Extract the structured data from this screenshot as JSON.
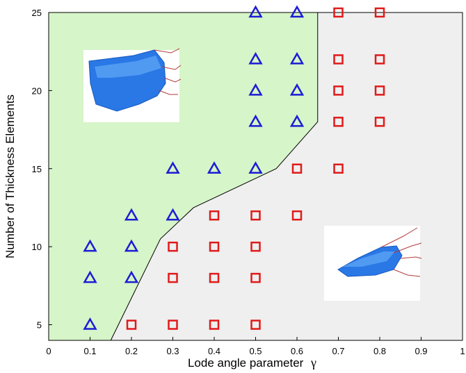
{
  "chart_data": {
    "type": "scatter",
    "title": "",
    "xlabel": "Lode angle parameter",
    "xlabel_symbol": "γ",
    "ylabel": "Number of Thickness Elements",
    "xlim": [
      0,
      1
    ],
    "ylim": [
      4,
      25
    ],
    "x_ticks": [
      "0",
      "0.1",
      "0.2",
      "0.3",
      "0.4",
      "0.5",
      "0.6",
      "0.7",
      "0.8",
      "0.9",
      "1"
    ],
    "y_ticks": [
      "5",
      "10",
      "15",
      "20",
      "25"
    ],
    "grid": false,
    "legend": "none",
    "regions": [
      {
        "color": "#d6f5c8",
        "boundary": [
          [
            0.15,
            4
          ],
          [
            0.27,
            10.5
          ],
          [
            0.35,
            12.5
          ],
          [
            0.55,
            15
          ],
          [
            0.65,
            18
          ],
          [
            0.65,
            25
          ]
        ]
      },
      {
        "color": "#efefef"
      }
    ],
    "series": [
      {
        "marker": "triangle",
        "color": "#1c1cd6",
        "points": [
          [
            0.5,
            25
          ],
          [
            0.6,
            25
          ],
          [
            0.5,
            22
          ],
          [
            0.6,
            22
          ],
          [
            0.5,
            20
          ],
          [
            0.6,
            20
          ],
          [
            0.5,
            18
          ],
          [
            0.6,
            18
          ],
          [
            0.3,
            15
          ],
          [
            0.4,
            15
          ],
          [
            0.5,
            15
          ],
          [
            0.2,
            12
          ],
          [
            0.3,
            12
          ],
          [
            0.1,
            10
          ],
          [
            0.2,
            10
          ],
          [
            0.1,
            8
          ],
          [
            0.2,
            8
          ],
          [
            0.1,
            5
          ]
        ]
      },
      {
        "marker": "square",
        "color": "#e01a1a",
        "points": [
          [
            0.7,
            25
          ],
          [
            0.8,
            25
          ],
          [
            0.7,
            22
          ],
          [
            0.8,
            22
          ],
          [
            0.7,
            20
          ],
          [
            0.8,
            20
          ],
          [
            0.7,
            18
          ],
          [
            0.8,
            18
          ],
          [
            0.6,
            15
          ],
          [
            0.7,
            15
          ],
          [
            0.4,
            12
          ],
          [
            0.5,
            12
          ],
          [
            0.6,
            12
          ],
          [
            0.3,
            10
          ],
          [
            0.4,
            10
          ],
          [
            0.5,
            10
          ],
          [
            0.3,
            8
          ],
          [
            0.4,
            8
          ],
          [
            0.5,
            8
          ],
          [
            0.2,
            5
          ],
          [
            0.3,
            5
          ],
          [
            0.4,
            5
          ],
          [
            0.5,
            5
          ]
        ]
      }
    ],
    "insets": [
      {
        "name": "specimen-image-upper",
        "region": "upper-left"
      },
      {
        "name": "specimen-image-lower",
        "region": "lower-right"
      }
    ]
  }
}
